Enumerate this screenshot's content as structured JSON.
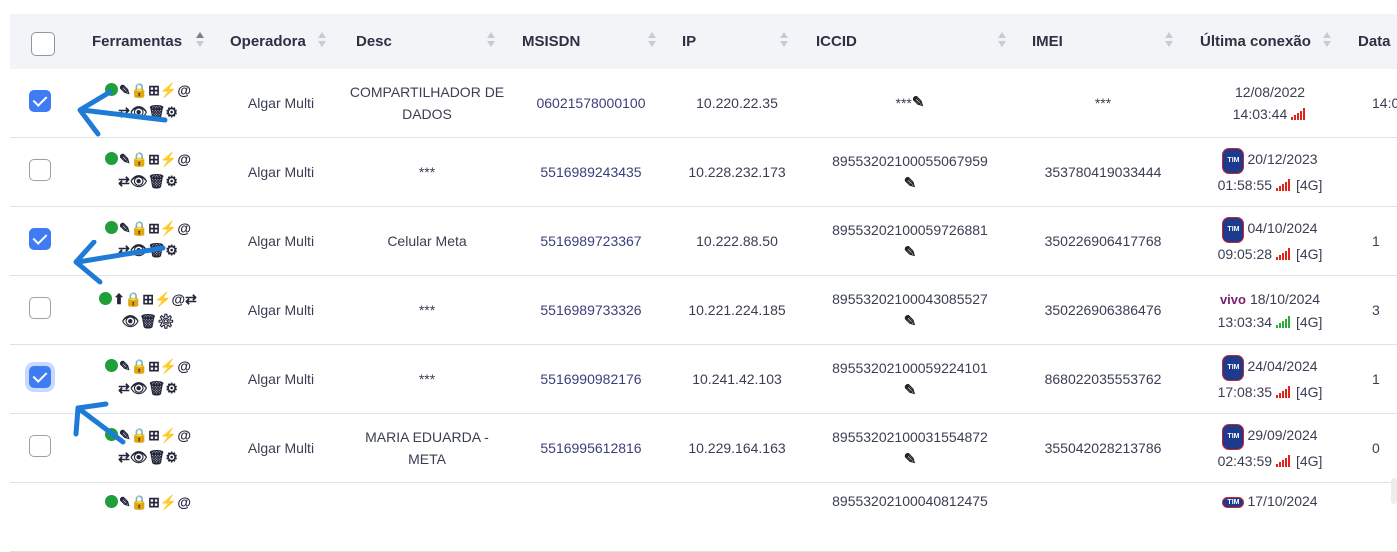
{
  "headers": {
    "ferramentas": "Ferramentas",
    "operadora": "Operadora",
    "desc": "Desc",
    "msisdn": "MSISDN",
    "ip": "IP",
    "iccid": "ICCID",
    "imei": "IMEI",
    "ultima_conexao": "Última conexão",
    "data": "Data"
  },
  "icons": {
    "status": "status-dot",
    "row_tools_a": "✎🔒⊞⚡@",
    "row_tools_b": "⇄👁🗑⚙",
    "colors": {
      "status_green": "#1f9e3a",
      "checkbox_blue": "#3f7bf2",
      "arrow_blue": "#1e7bd6",
      "signal_red": "#e0241b",
      "signal_green": "#2eaa3c"
    }
  },
  "rows": [
    {
      "checked": true,
      "operadora": "Algar Multi",
      "desc": "COMPARTILHADOR DE DADOS",
      "msisdn": "06021578000100",
      "ip": "10.220.22.35",
      "iccid": "***",
      "imei": "***",
      "carrier": "",
      "date": "12/08/2022",
      "time": "14:03:44",
      "net": "",
      "signal": "red",
      "data_col": "14:0"
    },
    {
      "checked": false,
      "operadora": "Algar Multi",
      "desc": "***",
      "msisdn": "5516989243435",
      "ip": "10.228.232.173",
      "iccid": "89553202100055067959",
      "imei": "353780419033444",
      "carrier": "TIM",
      "date": "20/12/2023",
      "time": "01:58:55",
      "net": "[4G]",
      "signal": "red",
      "data_col": ""
    },
    {
      "checked": true,
      "operadora": "Algar Multi",
      "desc": "Celular Meta",
      "msisdn": "5516989723367",
      "ip": "10.222.88.50",
      "iccid": "89553202100059726881",
      "imei": "350226906417768",
      "carrier": "TIM",
      "date": "04/10/2024",
      "time": "09:05:28",
      "net": "[4G]",
      "signal": "red",
      "data_col": "1"
    },
    {
      "checked": false,
      "operadora": "Algar Multi",
      "desc": "***",
      "msisdn": "5516989733326",
      "ip": "10.221.224.185",
      "iccid": "89553202100043085527",
      "imei": "350226906386476",
      "carrier": "vivo",
      "date": "18/10/2024",
      "time": "13:03:34",
      "net": "[4G]",
      "signal": "green",
      "data_col": "3"
    },
    {
      "checked": true,
      "operadora": "Algar Multi",
      "desc": "***",
      "msisdn": "5516990982176",
      "ip": "10.241.42.103",
      "iccid": "89553202100059224101",
      "imei": "868022035553762",
      "carrier": "TIM",
      "date": "24/04/2024",
      "time": "17:08:35",
      "net": "[4G]",
      "signal": "red",
      "data_col": "1"
    },
    {
      "checked": false,
      "operadora": "Algar Multi",
      "desc": "MARIA EDUARDA - META",
      "msisdn": "5516995612816",
      "ip": "10.229.164.163",
      "iccid": "89553202100031554872",
      "imei": "355042028213786",
      "carrier": "TIM",
      "date": "29/09/2024",
      "time": "02:43:59",
      "net": "[4G]",
      "signal": "red",
      "data_col": "0"
    }
  ],
  "partial_row": {
    "iccid": "89553202100040812475",
    "date": "17/10/2024"
  }
}
